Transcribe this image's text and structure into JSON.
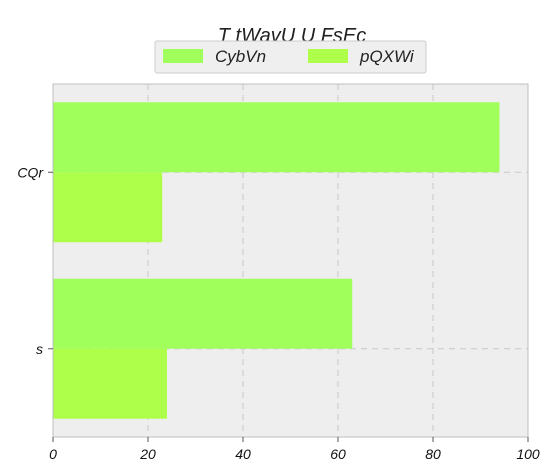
{
  "chart_data": {
    "type": "bar",
    "orientation": "horizontal",
    "title": "T tWavU U FsEc",
    "xlabel": "",
    "ylabel": "",
    "categories": [
      "CQr",
      "s"
    ],
    "series": [
      {
        "name": "CybVn",
        "values": [
          94,
          63
        ],
        "color": "#a0ff5a"
      },
      {
        "name": "pQXWi",
        "values": [
          23,
          24
        ],
        "color": "#aeff4a"
      }
    ],
    "xlim": [
      0,
      100
    ],
    "xticks": [
      0,
      20,
      40,
      60,
      80,
      100
    ],
    "grid": true,
    "legend_position": "top-center",
    "background_color": "#eeeeee",
    "grid_color": "#c8c8c8"
  }
}
